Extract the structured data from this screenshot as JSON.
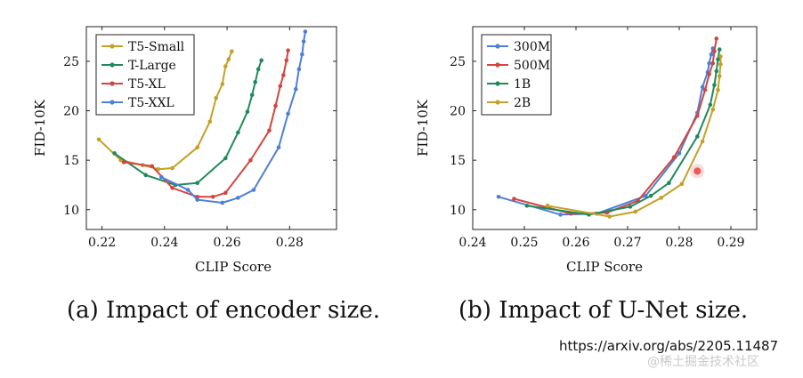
{
  "chart_data": [
    {
      "type": "line",
      "title": "",
      "xlabel": "CLIP Score",
      "ylabel": "FID-10K",
      "xlim": [
        0.215,
        0.295
      ],
      "ylim": [
        8,
        28.5
      ],
      "xticks": [
        0.22,
        0.24,
        0.26,
        0.28
      ],
      "xtick_labels": [
        "0.22",
        "0.24",
        "0.26",
        "0.28"
      ],
      "yticks": [
        10,
        15,
        20,
        25
      ],
      "ytick_labels": [
        "10",
        "15",
        "20",
        "25"
      ],
      "legend_position": "top-left",
      "series": [
        {
          "name": "T5-Small",
          "color": "#c2a127",
          "x": [
            0.219,
            0.226,
            0.233,
            0.238,
            0.2425,
            0.2505,
            0.2545,
            0.2565,
            0.2585,
            0.2595,
            0.2605,
            0.2615
          ],
          "y": [
            17.1,
            15.0,
            14.5,
            14.1,
            14.2,
            16.3,
            18.9,
            21.3,
            22.7,
            24.5,
            25.2,
            26.0
          ]
        },
        {
          "name": "T-Large",
          "color": "#1e8a5c",
          "x": [
            0.224,
            0.234,
            0.2435,
            0.2505,
            0.2595,
            0.2635,
            0.2665,
            0.268,
            0.269,
            0.27,
            0.271
          ],
          "y": [
            15.7,
            13.5,
            12.5,
            12.7,
            15.2,
            17.8,
            19.9,
            21.6,
            22.9,
            24.2,
            25.1
          ]
        },
        {
          "name": "T5-XL",
          "color": "#d4453f",
          "x": [
            0.227,
            0.236,
            0.2425,
            0.2505,
            0.2555,
            0.2595,
            0.2675,
            0.2735,
            0.2755,
            0.277,
            0.278,
            0.279,
            0.2795
          ],
          "y": [
            14.8,
            14.4,
            12.2,
            11.3,
            11.3,
            11.7,
            15.0,
            18.0,
            20.5,
            22.5,
            23.6,
            25.1,
            26.1
          ]
        },
        {
          "name": "T5-XXL",
          "color": "#4e7fd6",
          "x": [
            0.239,
            0.2475,
            0.2505,
            0.2585,
            0.2635,
            0.2685,
            0.2765,
            0.2795,
            0.282,
            0.283,
            0.284,
            0.2845,
            0.285
          ],
          "y": [
            13.3,
            12.0,
            11.0,
            10.7,
            11.2,
            12.0,
            16.3,
            19.7,
            22.2,
            24.2,
            25.7,
            27.0,
            28.0
          ]
        }
      ]
    },
    {
      "type": "line",
      "title": "",
      "xlabel": "CLIP Score",
      "ylabel": "FID-10K",
      "xlim": [
        0.24,
        0.295
      ],
      "ylim": [
        8,
        28.5
      ],
      "xticks": [
        0.24,
        0.25,
        0.26,
        0.27,
        0.28,
        0.29
      ],
      "xtick_labels": [
        "0.24",
        "0.25",
        "0.26",
        "0.27",
        "0.28",
        "0.29"
      ],
      "yticks": [
        10,
        15,
        20,
        25
      ],
      "ytick_labels": [
        "10",
        "15",
        "20",
        "25"
      ],
      "legend_position": "top-left",
      "series": [
        {
          "name": "300M",
          "color": "#4e7fd6",
          "x": [
            0.245,
            0.257,
            0.264,
            0.2735,
            0.28,
            0.2835,
            0.2845,
            0.2855,
            0.2858,
            0.2862,
            0.2865
          ],
          "y": [
            11.3,
            9.5,
            9.6,
            11.4,
            15.7,
            19.8,
            22.4,
            23.9,
            24.8,
            25.7,
            26.3
          ]
        },
        {
          "name": "500M",
          "color": "#d4453f",
          "x": [
            0.248,
            0.259,
            0.266,
            0.272,
            0.279,
            0.2835,
            0.285,
            0.2858,
            0.2865,
            0.2868,
            0.2872
          ],
          "y": [
            11.1,
            9.6,
            9.7,
            10.9,
            15.3,
            19.5,
            22.1,
            23.7,
            24.8,
            26.0,
            27.3
          ]
        },
        {
          "name": "1B",
          "color": "#1e8a5c",
          "x": [
            0.2505,
            0.2625,
            0.2705,
            0.2745,
            0.278,
            0.2835,
            0.286,
            0.2868,
            0.2872,
            0.2875,
            0.2878
          ],
          "y": [
            10.4,
            9.5,
            10.3,
            11.4,
            12.7,
            17.4,
            20.6,
            22.6,
            24.0,
            25.2,
            26.2
          ]
        },
        {
          "name": "2B",
          "color": "#c2a127",
          "x": [
            0.2545,
            0.2665,
            0.2715,
            0.2765,
            0.2805,
            0.2845,
            0.2865,
            0.2875,
            0.2878,
            0.288,
            0.288
          ],
          "y": [
            10.4,
            9.3,
            9.8,
            11.2,
            12.6,
            16.9,
            20.1,
            22.1,
            23.5,
            24.7,
            25.5
          ]
        }
      ],
      "annotations": [
        {
          "type": "highlight-dot",
          "x": 0.2835,
          "y": 13.9,
          "color": "#e53935"
        }
      ]
    }
  ],
  "captions": {
    "left": "(a) Impact of encoder size.",
    "right": "(b) Impact of U-Net size."
  },
  "source_url": "https://arxiv.org/abs/2205.11487",
  "watermark": "@稀土掘金技术社区"
}
